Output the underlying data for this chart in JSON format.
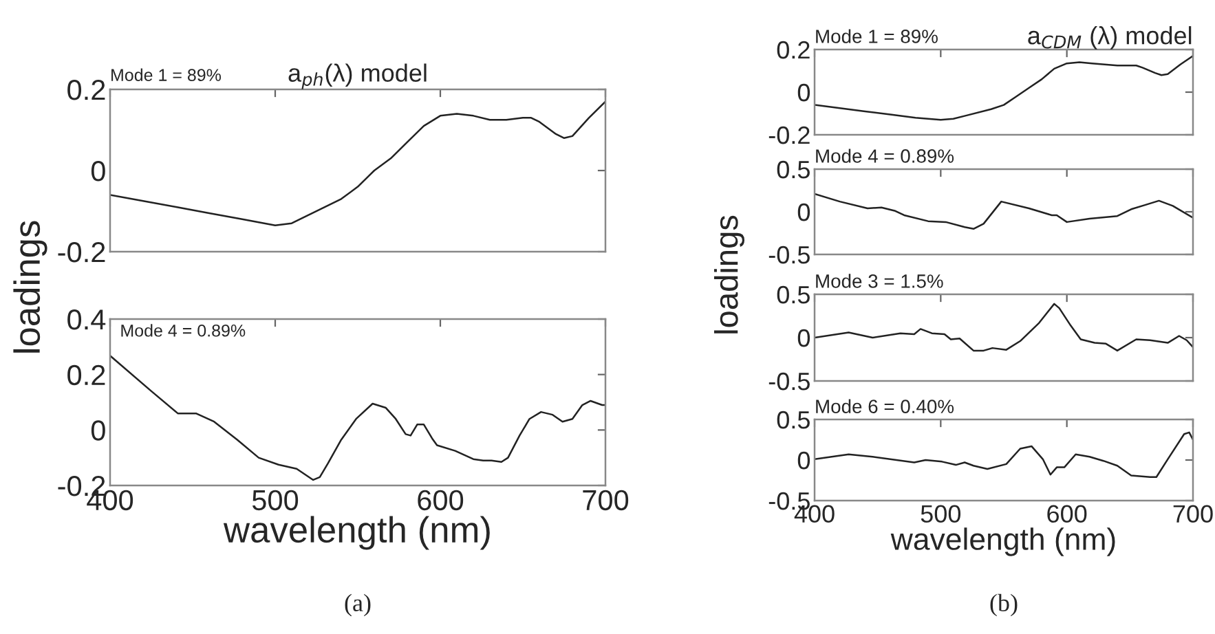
{
  "chart_data": [
    {
      "type": "line",
      "title": "a$_{ph}$(λ) model",
      "ylabel": "loadings",
      "annotations": [
        "Mode 1 = 89%"
      ],
      "tick_labels": "y",
      "xlim": [
        400,
        700
      ],
      "xticks": [
        400,
        500,
        600,
        700
      ],
      "ylim": [
        -0.2,
        0.2
      ],
      "yticks": [
        -0.2,
        0,
        0.2
      ],
      "grid": false,
      "legend": false,
      "series": [
        {
          "color": "#222222",
          "x": [
            400,
            420,
            440,
            460,
            480,
            500,
            510,
            520,
            540,
            550,
            560,
            570,
            580,
            590,
            600,
            610,
            620,
            630,
            640,
            650,
            655,
            660,
            670,
            675,
            680,
            690,
            700
          ],
          "values": [
            -0.06,
            -0.075,
            -0.09,
            -0.105,
            -0.12,
            -0.135,
            -0.13,
            -0.11,
            -0.07,
            -0.04,
            0.0,
            0.03,
            0.07,
            0.11,
            0.135,
            0.14,
            0.135,
            0.125,
            0.125,
            0.13,
            0.13,
            0.12,
            0.09,
            0.08,
            0.085,
            0.13,
            0.17
          ]
        }
      ]
    },
    {
      "type": "line",
      "xlabel": "wavelength (nm)",
      "annotations": [
        "Mode 4 = 0.89%",
        "(a)"
      ],
      "xlim": [
        400,
        700
      ],
      "xticks": [
        400,
        500,
        600,
        700
      ],
      "ylim": [
        -0.2,
        0.4
      ],
      "yticks": [
        -0.2,
        0,
        0.2,
        0.4
      ],
      "grid": false,
      "legend": false,
      "series": [
        {
          "color": "#222222",
          "x": [
            400,
            425,
            441,
            452,
            463,
            477,
            490,
            502,
            513,
            523,
            527,
            532,
            540,
            549,
            559,
            567,
            573,
            579,
            582,
            586,
            590,
            595,
            598,
            609,
            620,
            626,
            631,
            637,
            641,
            648,
            654,
            661,
            668,
            674,
            680,
            686,
            691,
            698,
            700
          ],
          "values": [
            0.268,
            0.14,
            0.06,
            0.06,
            0.03,
            -0.035,
            -0.1,
            -0.125,
            -0.14,
            -0.18,
            -0.17,
            -0.12,
            -0.035,
            0.04,
            0.095,
            0.08,
            0.04,
            -0.015,
            -0.02,
            0.02,
            0.02,
            -0.03,
            -0.055,
            -0.075,
            -0.105,
            -0.11,
            -0.11,
            -0.115,
            -0.1,
            -0.02,
            0.04,
            0.065,
            0.055,
            0.03,
            0.04,
            0.09,
            0.105,
            0.09,
            0.09
          ]
        }
      ]
    },
    {
      "type": "line",
      "title": "a$_{CDM}$ (λ) model",
      "ylabel": "loadings",
      "annotations": [
        "Mode 1 = 89%"
      ],
      "tick_labels": "y",
      "xlim": [
        400,
        700
      ],
      "xticks": [
        400,
        500,
        600,
        700
      ],
      "ylim": [
        -0.2,
        0.2
      ],
      "yticks": [
        -0.2,
        0,
        0.2
      ],
      "grid": false,
      "legend": false,
      "series": [
        {
          "color": "#222222",
          "x": [
            400,
            420,
            440,
            460,
            480,
            500,
            510,
            520,
            540,
            550,
            560,
            570,
            580,
            590,
            600,
            610,
            620,
            630,
            640,
            650,
            655,
            660,
            670,
            675,
            680,
            690,
            700
          ],
          "values": [
            -0.06,
            -0.075,
            -0.09,
            -0.105,
            -0.12,
            -0.13,
            -0.125,
            -0.11,
            -0.08,
            -0.06,
            -0.02,
            0.02,
            0.06,
            0.11,
            0.135,
            0.14,
            0.135,
            0.13,
            0.125,
            0.125,
            0.125,
            0.115,
            0.09,
            0.08,
            0.085,
            0.13,
            0.17
          ]
        }
      ]
    },
    {
      "type": "line",
      "annotations": [
        "Mode 4 = 0.89%"
      ],
      "tick_labels": "y",
      "xlim": [
        400,
        700
      ],
      "xticks": [
        400,
        500,
        600,
        700
      ],
      "ylim": [
        -0.5,
        0.5
      ],
      "yticks": [
        -0.5,
        0,
        0.5
      ],
      "grid": false,
      "legend": false,
      "series": [
        {
          "color": "#222222",
          "x": [
            400,
            420,
            442,
            453,
            464,
            471,
            490,
            504,
            519,
            526,
            534,
            548,
            570,
            588,
            592,
            600,
            618,
            640,
            651,
            662,
            673,
            684,
            700
          ],
          "values": [
            0.21,
            0.12,
            0.04,
            0.05,
            0.01,
            -0.04,
            -0.11,
            -0.12,
            -0.18,
            -0.2,
            -0.14,
            0.12,
            0.04,
            -0.04,
            -0.04,
            -0.12,
            -0.08,
            -0.05,
            0.03,
            0.08,
            0.13,
            0.07,
            -0.07
          ]
        }
      ]
    },
    {
      "type": "line",
      "annotations": [
        "Mode 3 = 1.5%"
      ],
      "tick_labels": "y",
      "xlim": [
        400,
        700
      ],
      "xticks": [
        400,
        500,
        600,
        700
      ],
      "ylim": [
        -0.5,
        0.5
      ],
      "yticks": [
        -0.5,
        0,
        0.5
      ],
      "grid": false,
      "legend": false,
      "series": [
        {
          "color": "#222222",
          "x": [
            400,
            427,
            446,
            468,
            479,
            484,
            493,
            503,
            508,
            515,
            526,
            534,
            541,
            552,
            563,
            578,
            590,
            594,
            603,
            611,
            622,
            631,
            640,
            655,
            666,
            680,
            689,
            695,
            700
          ],
          "values": [
            0,
            0.06,
            0,
            0.05,
            0.04,
            0.1,
            0.05,
            0.04,
            -0.02,
            -0.01,
            -0.15,
            -0.15,
            -0.12,
            -0.14,
            -0.04,
            0.17,
            0.39,
            0.34,
            0.14,
            -0.02,
            -0.06,
            -0.07,
            -0.15,
            -0.02,
            -0.03,
            -0.06,
            0.02,
            -0.03,
            -0.11
          ]
        }
      ]
    },
    {
      "type": "line",
      "xlabel": "wavelength (nm)",
      "annotations": [
        "Mode 6 = 0.40%",
        "(b)"
      ],
      "xlim": [
        400,
        700
      ],
      "xticks": [
        400,
        500,
        600,
        700
      ],
      "ylim": [
        -0.5,
        0.5
      ],
      "yticks": [
        -0.5,
        0,
        0.5
      ],
      "grid": false,
      "legend": false,
      "series": [
        {
          "color": "#222222",
          "x": [
            400,
            427,
            446,
            479,
            488,
            501,
            512,
            519,
            526,
            537,
            552,
            563,
            572,
            581,
            587,
            592,
            598,
            607,
            618,
            629,
            640,
            651,
            666,
            671,
            680,
            693,
            697,
            700
          ],
          "values": [
            0.01,
            0.07,
            0.04,
            -0.03,
            0,
            -0.02,
            -0.06,
            -0.03,
            -0.07,
            -0.11,
            -0.05,
            0.14,
            0.17,
            0.01,
            -0.18,
            -0.09,
            -0.09,
            0.07,
            0.04,
            -0.01,
            -0.07,
            -0.19,
            -0.21,
            -0.21,
            0.01,
            0.32,
            0.34,
            0.25
          ]
        }
      ]
    }
  ]
}
